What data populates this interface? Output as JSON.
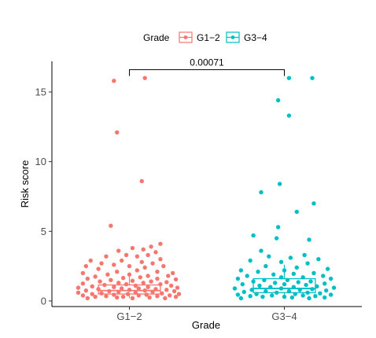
{
  "chart_data": {
    "type": "box",
    "xlabel": "Grade",
    "ylabel": "Risk score",
    "ylim": [
      -0.4,
      17.2
    ],
    "yticks": [
      0,
      5,
      10,
      15
    ],
    "categories": [
      "G1−2",
      "G3−4"
    ],
    "legend": {
      "title": "Grade",
      "position": "top",
      "entries": [
        "G1−2",
        "G3−4"
      ]
    },
    "comparison": {
      "label": "0.00071",
      "between": [
        "G1−2",
        "G3−4"
      ],
      "y": 16.6
    },
    "series": [
      {
        "name": "G1−2",
        "color": "#F8766D",
        "box": {
          "q1": 0.5,
          "median": 0.75,
          "q3": 1.15,
          "whisker_low": 0.2,
          "whisker_high": 1.9
        },
        "points": [
          {
            "x": -0.1,
            "y": 15.8
          },
          {
            "x": 0.1,
            "y": 16.0
          },
          {
            "x": -0.08,
            "y": 12.1
          },
          {
            "x": 0.08,
            "y": 8.6
          },
          {
            "x": -0.12,
            "y": 5.4
          },
          {
            "x": 0.2,
            "y": 4.1
          },
          {
            "x": 0.14,
            "y": 3.9
          },
          {
            "x": 0.09,
            "y": 3.7
          },
          {
            "x": 0.02,
            "y": 3.8
          },
          {
            "x": -0.07,
            "y": 3.6
          },
          {
            "x": 0.17,
            "y": 3.5
          },
          {
            "x": -0.02,
            "y": 3.3
          },
          {
            "x": 0.12,
            "y": 3.3
          },
          {
            "x": -0.15,
            "y": 3.2
          },
          {
            "x": 0.05,
            "y": 3.2
          },
          {
            "x": 0.2,
            "y": 3.0
          },
          {
            "x": -0.25,
            "y": 2.9
          },
          {
            "x": -0.05,
            "y": 2.9
          },
          {
            "x": 0.08,
            "y": 2.8
          },
          {
            "x": -0.18,
            "y": 2.7
          },
          {
            "x": 0.15,
            "y": 2.7
          },
          {
            "x": -0.1,
            "y": 2.6
          },
          {
            "x": 0.0,
            "y": 2.5
          },
          {
            "x": 0.22,
            "y": 2.5
          },
          {
            "x": -0.28,
            "y": 2.5
          },
          {
            "x": 0.1,
            "y": 2.4
          },
          {
            "x": -0.2,
            "y": 2.3
          },
          {
            "x": 0.05,
            "y": 2.2
          },
          {
            "x": 0.18,
            "y": 2.1
          },
          {
            "x": -0.08,
            "y": 2.1
          },
          {
            "x": -0.3,
            "y": 2.0
          },
          {
            "x": 0.28,
            "y": 2.0
          },
          {
            "x": 0.0,
            "y": 1.9
          },
          {
            "x": -0.14,
            "y": 1.9
          },
          {
            "x": 0.12,
            "y": 1.8
          },
          {
            "x": 0.25,
            "y": 1.8
          },
          {
            "x": -0.22,
            "y": 1.75
          },
          {
            "x": 0.07,
            "y": 1.7
          },
          {
            "x": -0.04,
            "y": 1.65
          },
          {
            "x": 0.18,
            "y": 1.6
          },
          {
            "x": -0.27,
            "y": 1.6
          },
          {
            "x": 0.3,
            "y": 1.55
          },
          {
            "x": -0.12,
            "y": 1.5
          },
          {
            "x": 0.02,
            "y": 1.45
          },
          {
            "x": 0.14,
            "y": 1.4
          },
          {
            "x": -0.19,
            "y": 1.4
          },
          {
            "x": 0.24,
            "y": 1.35
          },
          {
            "x": -0.07,
            "y": 1.3
          },
          {
            "x": 0.09,
            "y": 1.3
          },
          {
            "x": -0.3,
            "y": 1.25
          },
          {
            "x": 0.2,
            "y": 1.2
          },
          {
            "x": -0.02,
            "y": 1.2
          },
          {
            "x": -0.16,
            "y": 1.15
          },
          {
            "x": 0.27,
            "y": 1.1
          },
          {
            "x": 0.04,
            "y": 1.1
          },
          {
            "x": -0.24,
            "y": 1.05
          },
          {
            "x": 0.12,
            "y": 1.0
          },
          {
            "x": -0.1,
            "y": 1.0
          },
          {
            "x": 0.31,
            "y": 0.95
          },
          {
            "x": -0.33,
            "y": 0.95
          },
          {
            "x": 0.06,
            "y": 0.9
          },
          {
            "x": -0.05,
            "y": 0.9
          },
          {
            "x": 0.17,
            "y": 0.85
          },
          {
            "x": -0.2,
            "y": 0.85
          },
          {
            "x": 0.24,
            "y": 0.8
          },
          {
            "x": 0.0,
            "y": 0.8
          },
          {
            "x": -0.28,
            "y": 0.75
          },
          {
            "x": 0.1,
            "y": 0.75
          },
          {
            "x": -0.13,
            "y": 0.7
          },
          {
            "x": 0.29,
            "y": 0.7
          },
          {
            "x": -0.07,
            "y": 0.65
          },
          {
            "x": 0.15,
            "y": 0.65
          },
          {
            "x": -0.33,
            "y": 0.6
          },
          {
            "x": 0.04,
            "y": 0.6
          },
          {
            "x": 0.21,
            "y": 0.55
          },
          {
            "x": -0.18,
            "y": 0.55
          },
          {
            "x": -0.01,
            "y": 0.5
          },
          {
            "x": 0.32,
            "y": 0.5
          },
          {
            "x": -0.24,
            "y": 0.5
          },
          {
            "x": 0.11,
            "y": 0.45
          },
          {
            "x": -0.1,
            "y": 0.45
          },
          {
            "x": 0.26,
            "y": 0.4
          },
          {
            "x": -0.3,
            "y": 0.4
          },
          {
            "x": 0.06,
            "y": 0.4
          },
          {
            "x": -0.15,
            "y": 0.35
          },
          {
            "x": 0.18,
            "y": 0.35
          },
          {
            "x": -0.04,
            "y": 0.3
          },
          {
            "x": 0.3,
            "y": 0.3
          },
          {
            "x": -0.22,
            "y": 0.3
          },
          {
            "x": 0.13,
            "y": 0.25
          },
          {
            "x": -0.08,
            "y": 0.25
          },
          {
            "x": 0.23,
            "y": 0.2
          },
          {
            "x": -0.27,
            "y": 0.2
          },
          {
            "x": 0.02,
            "y": 0.2
          }
        ]
      },
      {
        "name": "G3−4",
        "color": "#00BFC4",
        "box": {
          "q1": 0.6,
          "median": 0.9,
          "q3": 1.6,
          "whisker_low": 0.2,
          "whisker_high": 2.6
        },
        "points": [
          {
            "x": 0.03,
            "y": 16.0
          },
          {
            "x": 0.18,
            "y": 16.0
          },
          {
            "x": -0.04,
            "y": 14.4
          },
          {
            "x": 0.03,
            "y": 13.3
          },
          {
            "x": -0.03,
            "y": 8.4
          },
          {
            "x": -0.15,
            "y": 7.8
          },
          {
            "x": 0.19,
            "y": 7.0
          },
          {
            "x": 0.08,
            "y": 6.4
          },
          {
            "x": -0.04,
            "y": 5.3
          },
          {
            "x": -0.2,
            "y": 4.7
          },
          {
            "x": -0.05,
            "y": 4.5
          },
          {
            "x": 0.16,
            "y": 4.4
          },
          {
            "x": -0.15,
            "y": 3.6
          },
          {
            "x": 0.13,
            "y": 3.3
          },
          {
            "x": -0.1,
            "y": 3.2
          },
          {
            "x": 0.04,
            "y": 3.1
          },
          {
            "x": 0.22,
            "y": 3.0
          },
          {
            "x": -0.22,
            "y": 2.9
          },
          {
            "x": -0.02,
            "y": 2.8
          },
          {
            "x": 0.15,
            "y": 2.7
          },
          {
            "x": -0.12,
            "y": 2.5
          },
          {
            "x": 0.08,
            "y": 2.4
          },
          {
            "x": 0.28,
            "y": 2.3
          },
          {
            "x": -0.28,
            "y": 2.2
          },
          {
            "x": 0.0,
            "y": 2.2
          },
          {
            "x": -0.17,
            "y": 2.1
          },
          {
            "x": 0.19,
            "y": 2.0
          },
          {
            "x": 0.06,
            "y": 1.95
          },
          {
            "x": -0.07,
            "y": 1.9
          },
          {
            "x": 0.25,
            "y": 1.8
          },
          {
            "x": -0.24,
            "y": 1.8
          },
          {
            "x": 0.12,
            "y": 1.7
          },
          {
            "x": -0.02,
            "y": 1.7
          },
          {
            "x": -0.3,
            "y": 1.6
          },
          {
            "x": 0.3,
            "y": 1.6
          },
          {
            "x": 0.02,
            "y": 1.5
          },
          {
            "x": -0.13,
            "y": 1.5
          },
          {
            "x": 0.17,
            "y": 1.4
          },
          {
            "x": -0.2,
            "y": 1.4
          },
          {
            "x": 0.09,
            "y": 1.35
          },
          {
            "x": -0.06,
            "y": 1.3
          },
          {
            "x": 0.26,
            "y": 1.25
          },
          {
            "x": -0.27,
            "y": 1.2
          },
          {
            "x": 0.0,
            "y": 1.2
          },
          {
            "x": 0.14,
            "y": 1.15
          },
          {
            "x": -0.16,
            "y": 1.1
          },
          {
            "x": 0.21,
            "y": 1.05
          },
          {
            "x": -0.09,
            "y": 1.0
          },
          {
            "x": 0.06,
            "y": 1.0
          },
          {
            "x": 0.32,
            "y": 0.95
          },
          {
            "x": -0.32,
            "y": 0.9
          },
          {
            "x": -0.02,
            "y": 0.9
          },
          {
            "x": 0.18,
            "y": 0.85
          },
          {
            "x": -0.21,
            "y": 0.8
          },
          {
            "x": 0.1,
            "y": 0.8
          },
          {
            "x": 0.27,
            "y": 0.75
          },
          {
            "x": -0.12,
            "y": 0.7
          },
          {
            "x": 0.03,
            "y": 0.7
          },
          {
            "x": -0.26,
            "y": 0.65
          },
          {
            "x": 0.15,
            "y": 0.6
          },
          {
            "x": -0.05,
            "y": 0.6
          },
          {
            "x": 0.23,
            "y": 0.55
          },
          {
            "x": -0.18,
            "y": 0.5
          },
          {
            "x": 0.07,
            "y": 0.5
          },
          {
            "x": 0.3,
            "y": 0.45
          },
          {
            "x": -0.3,
            "y": 0.45
          },
          {
            "x": -0.08,
            "y": 0.4
          },
          {
            "x": 0.12,
            "y": 0.4
          },
          {
            "x": -0.22,
            "y": 0.35
          },
          {
            "x": 0.2,
            "y": 0.35
          },
          {
            "x": 0.0,
            "y": 0.3
          },
          {
            "x": -0.14,
            "y": 0.3
          },
          {
            "x": 0.26,
            "y": 0.25
          },
          {
            "x": 0.05,
            "y": 0.25
          },
          {
            "x": -0.28,
            "y": 0.2
          },
          {
            "x": 0.16,
            "y": 0.2
          }
        ]
      }
    ]
  }
}
